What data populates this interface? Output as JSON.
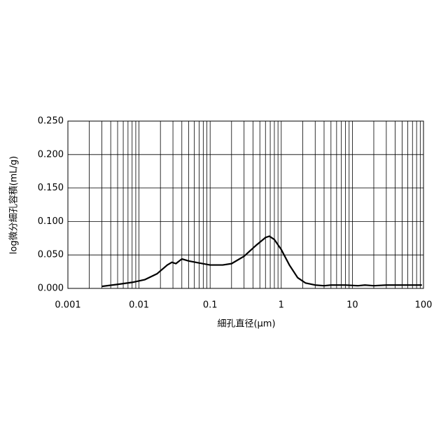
{
  "chart_data": {
    "type": "line",
    "xlabel": "細孔直径(μm)",
    "ylabel": "log微分細孔容積(mL/g)",
    "xlog": true,
    "grid": true,
    "x": [
      0.003,
      0.005,
      0.008,
      0.012,
      0.018,
      0.025,
      0.029,
      0.033,
      0.04,
      0.05,
      0.07,
      0.1,
      0.15,
      0.2,
      0.3,
      0.45,
      0.6,
      0.68,
      0.8,
      1.0,
      1.3,
      1.7,
      2.2,
      3,
      4,
      5,
      8,
      12,
      15,
      20,
      30,
      50,
      95
    ],
    "series": [
      {
        "color": "#000000",
        "values": [
          0.003,
          0.006,
          0.009,
          0.013,
          0.022,
          0.035,
          0.039,
          0.037,
          0.044,
          0.041,
          0.038,
          0.035,
          0.035,
          0.037,
          0.048,
          0.065,
          0.076,
          0.078,
          0.073,
          0.058,
          0.035,
          0.016,
          0.008,
          0.005,
          0.004,
          0.005,
          0.005,
          0.004,
          0.005,
          0.004,
          0.005,
          0.005,
          0.005
        ]
      }
    ],
    "xlim": [
      0.001,
      100
    ],
    "xticks": [
      0.001,
      0.01,
      0.1,
      1,
      10,
      100
    ],
    "ylim": [
      0,
      0.25
    ],
    "yticks": [
      {
        "value": 0,
        "label": "0.000"
      },
      {
        "value": 0.05,
        "label": "0.050"
      },
      {
        "value": 0.1,
        "label": "0.100"
      },
      {
        "value": 0.15,
        "label": "0.150"
      },
      {
        "value": 0.2,
        "label": "0.200"
      },
      {
        "value": 0.25,
        "label": "0.250"
      }
    ]
  }
}
